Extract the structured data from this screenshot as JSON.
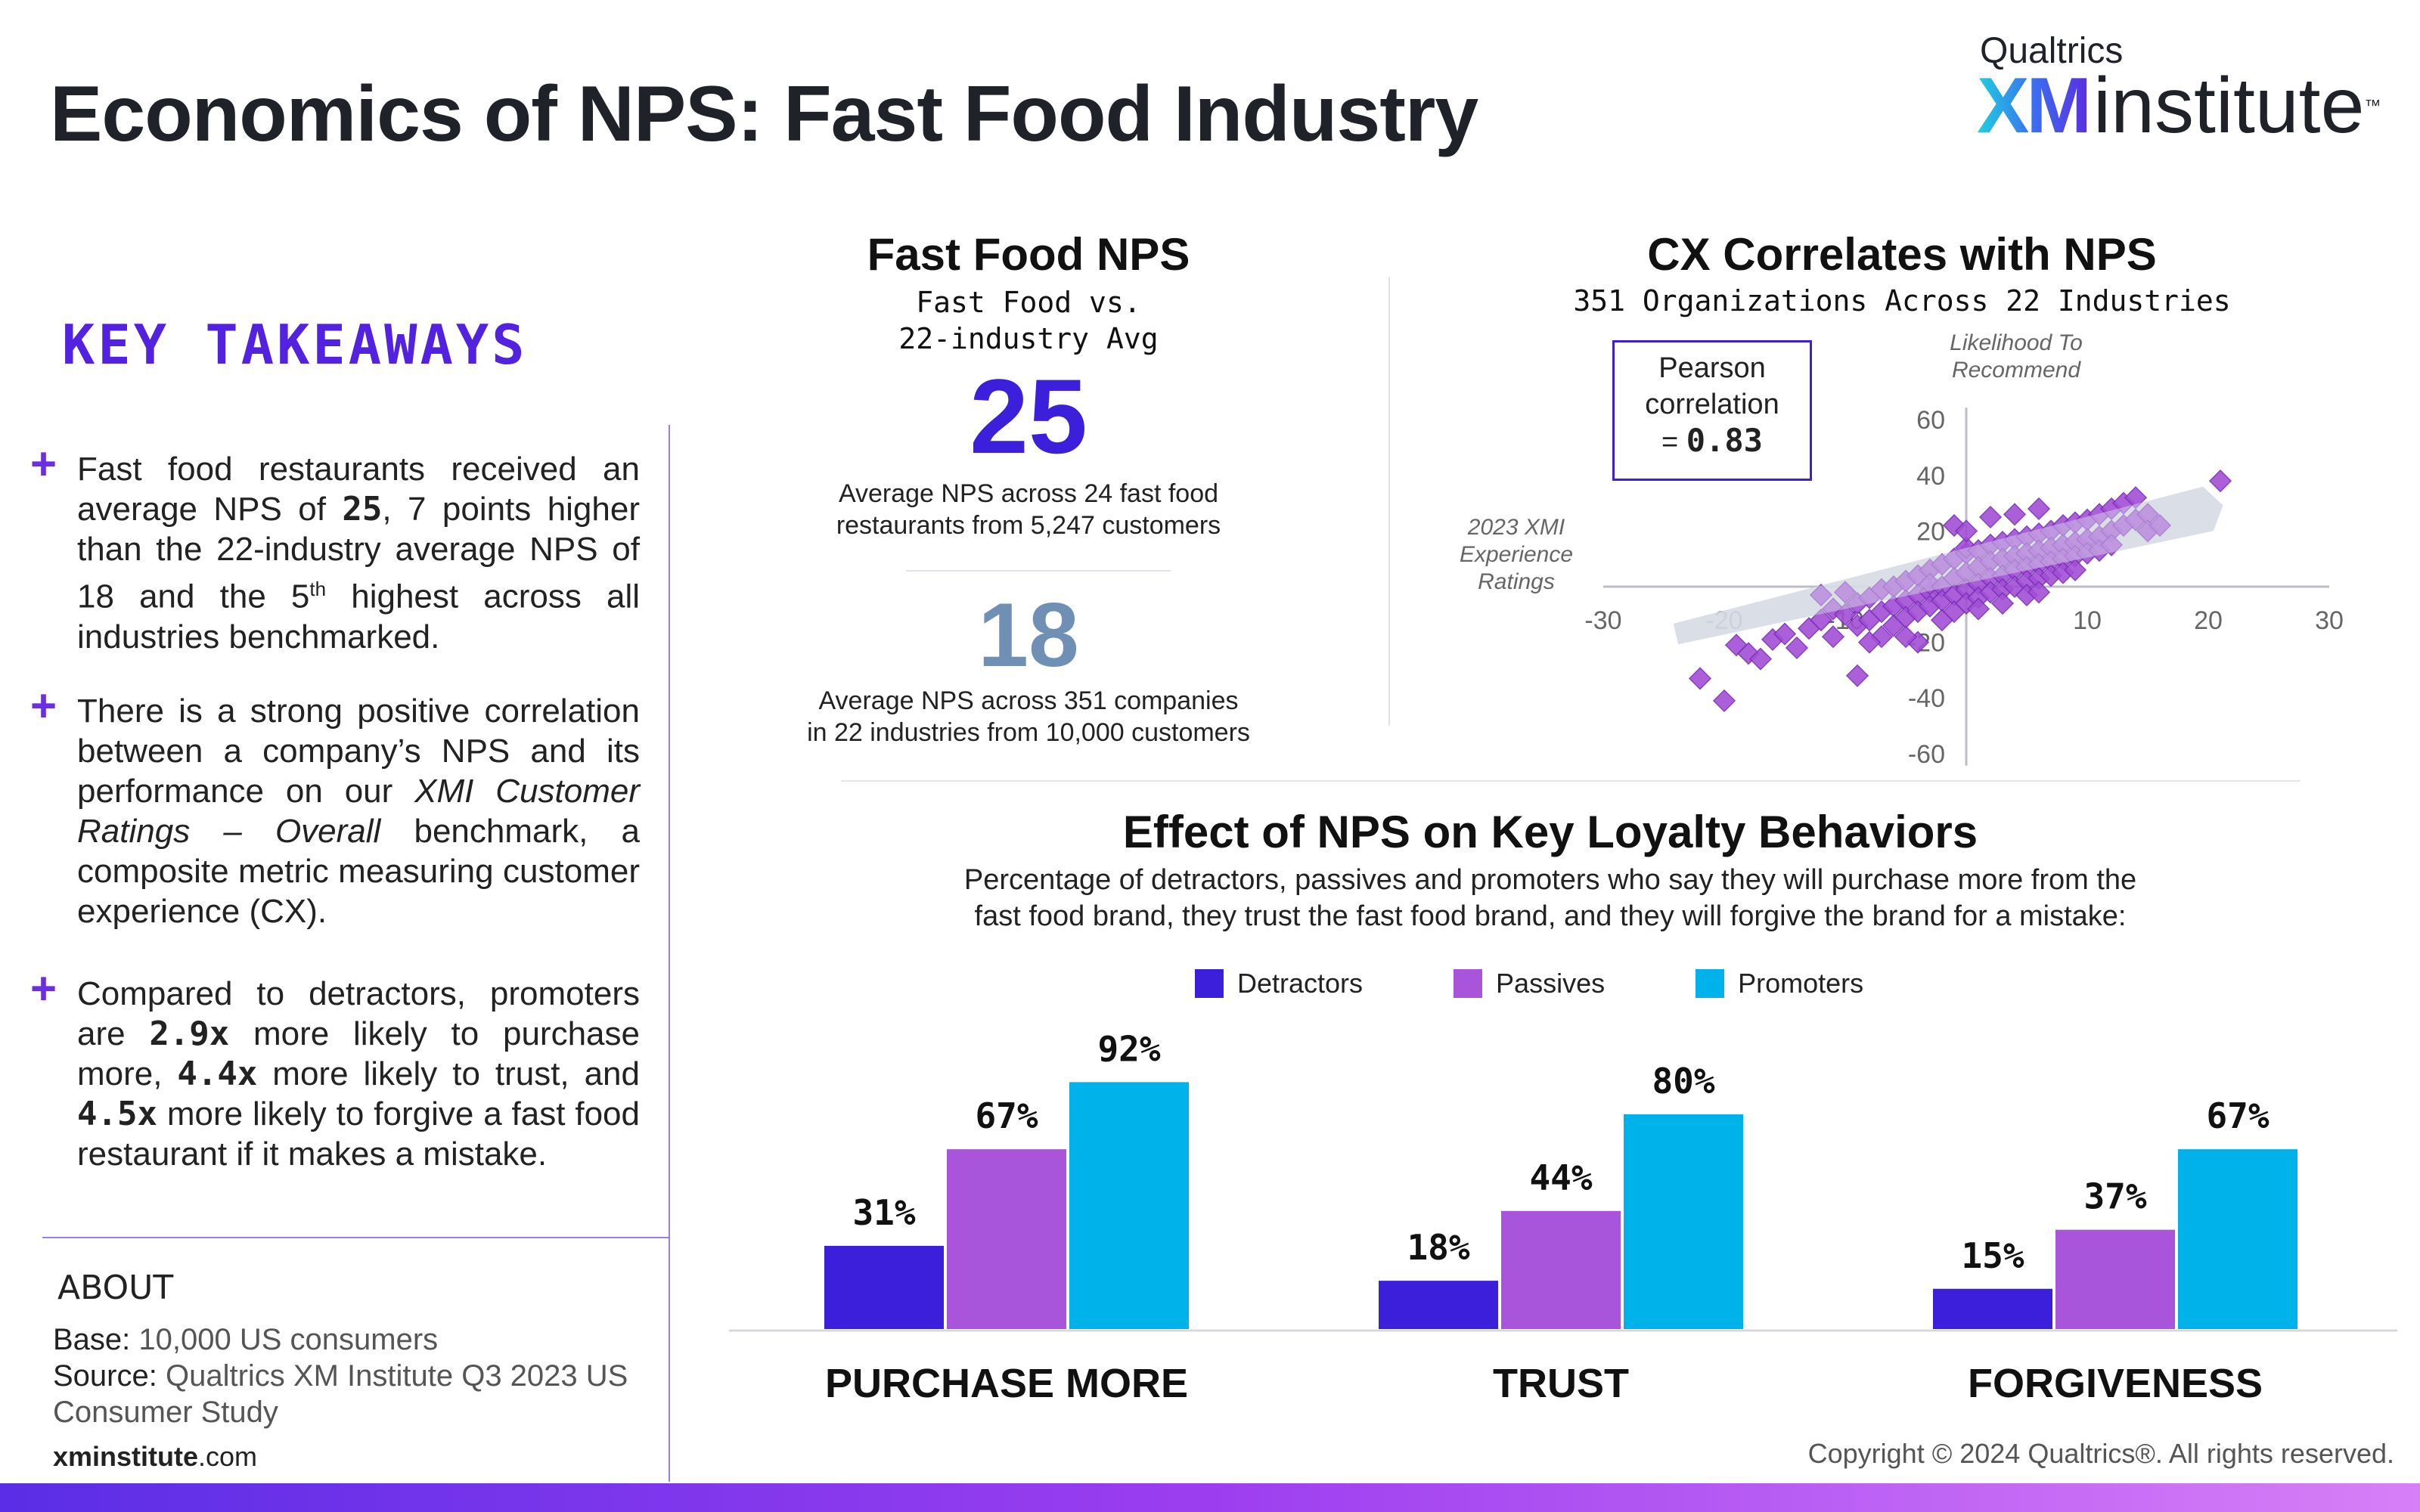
{
  "title": "Economics of NPS: Fast Food Industry",
  "logo": {
    "brand": "Qualtrics",
    "xm": "XM",
    "word": "institute",
    "tm": "™"
  },
  "key_takeaways": {
    "heading": "KEY TAKEAWAYS",
    "plus": "+",
    "t1": {
      "a": "Fast food restaurants received an average NPS of ",
      "b": "25",
      "c": ", 7 points higher than the 22-industry average NPS of 18 and the 5",
      "sup": "th",
      "d": " highest across all industries benchmarked."
    },
    "t2": {
      "a": " There is a strong positive correlation between a company’s NPS and its performance on our ",
      "b": "XMI Customer Ratings – Overall",
      "c": " benchmark, a composite metric measuring customer experience (CX)."
    },
    "t3": {
      "a": "Compared to detractors, promoters are ",
      "b": "2.9x",
      "c": " more likely to purchase more, ",
      "d": "4.4x",
      "e": " more likely to trust, and ",
      "f": "4.5x",
      "g": " more likely to forgive a fast food restaurant if it makes a mistake."
    }
  },
  "about": {
    "heading": "ABOUT",
    "base_label": "Base:",
    "base_value": " 10,000 US consumers",
    "source_label": "Source:",
    "source_value": " Qualtrics XM Institute Q3 2023 US Consumer Study",
    "site_bold": "xminstitute",
    "site_rest": ".com"
  },
  "copyright": "Copyright © 2024 Qualtrics®. All rights reserved.",
  "nps_panel": {
    "title": "Fast Food NPS",
    "subtitle_1": "Fast Food vs.",
    "subtitle_2": "22-industry Avg",
    "value": "25",
    "value_desc_1": "Average NPS across 24 fast food",
    "value_desc_2": "restaurants from 5,247 customers",
    "avg": "18",
    "avg_desc_1": "Average NPS across 351 companies",
    "avg_desc_2": "in 22 industries from 10,000 customers"
  },
  "cx_panel": {
    "title": "CX Correlates with NPS",
    "subtitle": "351 Organizations Across 22 Industries",
    "pearson_1": "Pearson",
    "pearson_2": "correlation",
    "pearson_eq": "= ",
    "pearson_value": "0.83",
    "ylabel_1": "Likelihood To",
    "ylabel_2": "Recommend",
    "xlabel_1": "2023 XMI",
    "xlabel_2": "Experience",
    "xlabel_3": "Ratings"
  },
  "effect_panel": {
    "title": "Effect of NPS on Key Loyalty Behaviors",
    "desc_1": "Percentage of detractors, passives and promoters who say they will purchase more from the",
    "desc_2": "fast food brand, they trust the fast food brand, and they will forgive the brand for a mistake:"
  },
  "colors": {
    "detractors": "#3b1fdb",
    "passives": "#a855db",
    "promoters": "#00b2ea",
    "scatter": "#a24fd6",
    "title": "#1f2229"
  },
  "chart_data": [
    {
      "type": "scatter",
      "xlim": [
        -30,
        30
      ],
      "ylim": [
        -60,
        60
      ],
      "xticks": [
        "-30",
        "-20",
        "-10",
        "10",
        "20",
        "30"
      ],
      "yticks": [
        "60",
        "40",
        "20",
        "0",
        "-20",
        "-40",
        "-60"
      ],
      "trend": [
        [
          -24,
          -17
        ],
        [
          20,
          28
        ]
      ],
      "points": [
        [
          -22,
          -33
        ],
        [
          -20,
          -41
        ],
        [
          -19,
          -21
        ],
        [
          -18,
          -24
        ],
        [
          -17,
          -26
        ],
        [
          -16,
          -19
        ],
        [
          -15,
          -17
        ],
        [
          -14,
          -22
        ],
        [
          -13,
          -15
        ],
        [
          -12,
          -3
        ],
        [
          -12,
          -12
        ],
        [
          -11,
          -8
        ],
        [
          -11,
          -18
        ],
        [
          -10,
          -10
        ],
        [
          -10,
          -2
        ],
        [
          -9,
          -6
        ],
        [
          -9,
          -14
        ],
        [
          -9,
          -32
        ],
        [
          -8,
          -4
        ],
        [
          -8,
          -12
        ],
        [
          -7,
          -1
        ],
        [
          -7,
          -9
        ],
        [
          -7,
          -18
        ],
        [
          -6,
          0
        ],
        [
          -6,
          -7
        ],
        [
          -6,
          -14
        ],
        [
          -5,
          2
        ],
        [
          -5,
          -5
        ],
        [
          -5,
          -11
        ],
        [
          -4,
          4
        ],
        [
          -4,
          -3
        ],
        [
          -4,
          -9
        ],
        [
          -4,
          -20
        ],
        [
          -3,
          6
        ],
        [
          -3,
          -2
        ],
        [
          -3,
          -7
        ],
        [
          -3,
          1
        ],
        [
          -2,
          8
        ],
        [
          -2,
          0
        ],
        [
          -2,
          -5
        ],
        [
          -2,
          -12
        ],
        [
          -1,
          10
        ],
        [
          -1,
          3
        ],
        [
          -1,
          -3
        ],
        [
          -1,
          -9
        ],
        [
          0,
          12
        ],
        [
          0,
          5
        ],
        [
          0,
          -1
        ],
        [
          0,
          -6
        ],
        [
          0,
          14
        ],
        [
          1,
          13
        ],
        [
          1,
          7
        ],
        [
          1,
          1
        ],
        [
          1,
          -4
        ],
        [
          1,
          -8
        ],
        [
          2,
          15
        ],
        [
          2,
          9
        ],
        [
          2,
          3
        ],
        [
          2,
          -2
        ],
        [
          3,
          16
        ],
        [
          3,
          10
        ],
        [
          3,
          4
        ],
        [
          3,
          -1
        ],
        [
          3,
          -6
        ],
        [
          4,
          17
        ],
        [
          4,
          11
        ],
        [
          4,
          6
        ],
        [
          4,
          0
        ],
        [
          5,
          18
        ],
        [
          5,
          12
        ],
        [
          5,
          7
        ],
        [
          5,
          2
        ],
        [
          5,
          -3
        ],
        [
          6,
          19
        ],
        [
          6,
          13
        ],
        [
          6,
          8
        ],
        [
          6,
          3
        ],
        [
          6,
          -2
        ],
        [
          7,
          20
        ],
        [
          7,
          14
        ],
        [
          7,
          9
        ],
        [
          7,
          4
        ],
        [
          8,
          22
        ],
        [
          8,
          15
        ],
        [
          8,
          10
        ],
        [
          8,
          5
        ],
        [
          9,
          23
        ],
        [
          9,
          16
        ],
        [
          9,
          11
        ],
        [
          9,
          6
        ],
        [
          10,
          24
        ],
        [
          10,
          17
        ],
        [
          10,
          12
        ],
        [
          11,
          26
        ],
        [
          11,
          18
        ],
        [
          11,
          13
        ],
        [
          12,
          28
        ],
        [
          12,
          20
        ],
        [
          12,
          15
        ],
        [
          13,
          30
        ],
        [
          13,
          22
        ],
        [
          14,
          32
        ],
        [
          14,
          24
        ],
        [
          15,
          26
        ],
        [
          15,
          20
        ],
        [
          16,
          22
        ],
        [
          -1,
          22
        ],
        [
          2,
          25
        ],
        [
          6,
          28
        ],
        [
          -5,
          -18
        ],
        [
          -8,
          -20
        ],
        [
          0,
          20
        ],
        [
          4,
          26
        ],
        [
          21,
          38
        ]
      ]
    },
    {
      "type": "bar",
      "categories": [
        "PURCHASE MORE",
        "TRUST",
        "FORGIVENESS"
      ],
      "series": [
        {
          "name": "Detractors",
          "values": [
            31,
            18,
            15
          ]
        },
        {
          "name": "Passives",
          "values": [
            67,
            44,
            37
          ]
        },
        {
          "name": "Promoters",
          "values": [
            92,
            80,
            67
          ]
        }
      ],
      "ylim": [
        0,
        100
      ],
      "value_suffix": "%",
      "legend": "top-center"
    }
  ]
}
